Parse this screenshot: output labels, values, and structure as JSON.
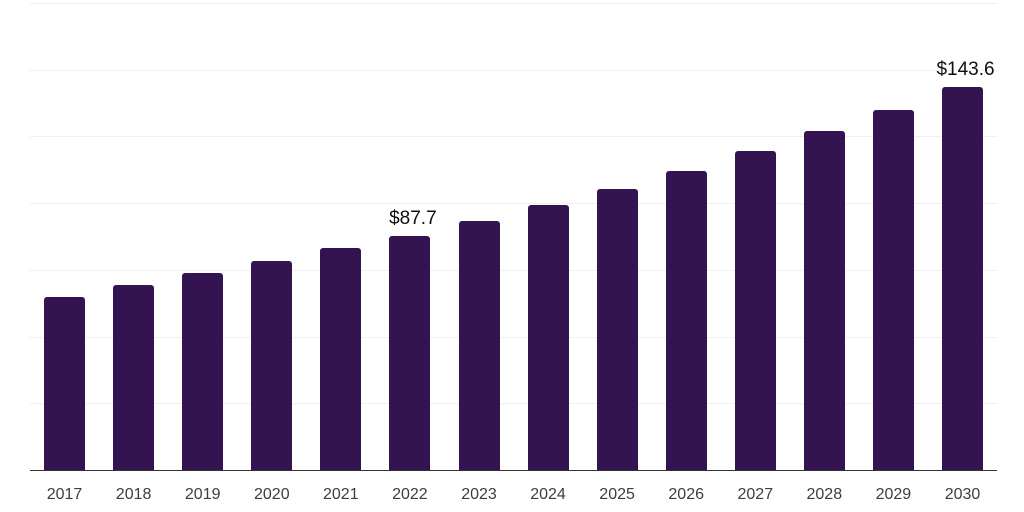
{
  "chart_data": {
    "type": "bar",
    "title": "",
    "xlabel": "",
    "ylabel": "",
    "categories": [
      "2017",
      "2018",
      "2019",
      "2020",
      "2021",
      "2022",
      "2023",
      "2024",
      "2025",
      "2026",
      "2027",
      "2028",
      "2029",
      "2030"
    ],
    "values": [
      64.8,
      69.3,
      73.8,
      78.3,
      83.2,
      87.7,
      93.3,
      99.2,
      105.5,
      112.2,
      119.4,
      127.0,
      135.0,
      143.6
    ],
    "data_labels": [
      "",
      "",
      "",
      "",
      "",
      "$87.7",
      "",
      "",
      "",
      "",
      "",
      "",
      "",
      "$143.6"
    ],
    "ylim": [
      0,
      175
    ],
    "grid_step": 25,
    "grid": true,
    "legend": false,
    "colors": {
      "bar": "#341450",
      "grid": "#f0f0f0",
      "axis_line": "#333333",
      "tick_label": "#3d3d3d",
      "data_label": "#0f0f0f",
      "background": "#ffffff"
    }
  }
}
